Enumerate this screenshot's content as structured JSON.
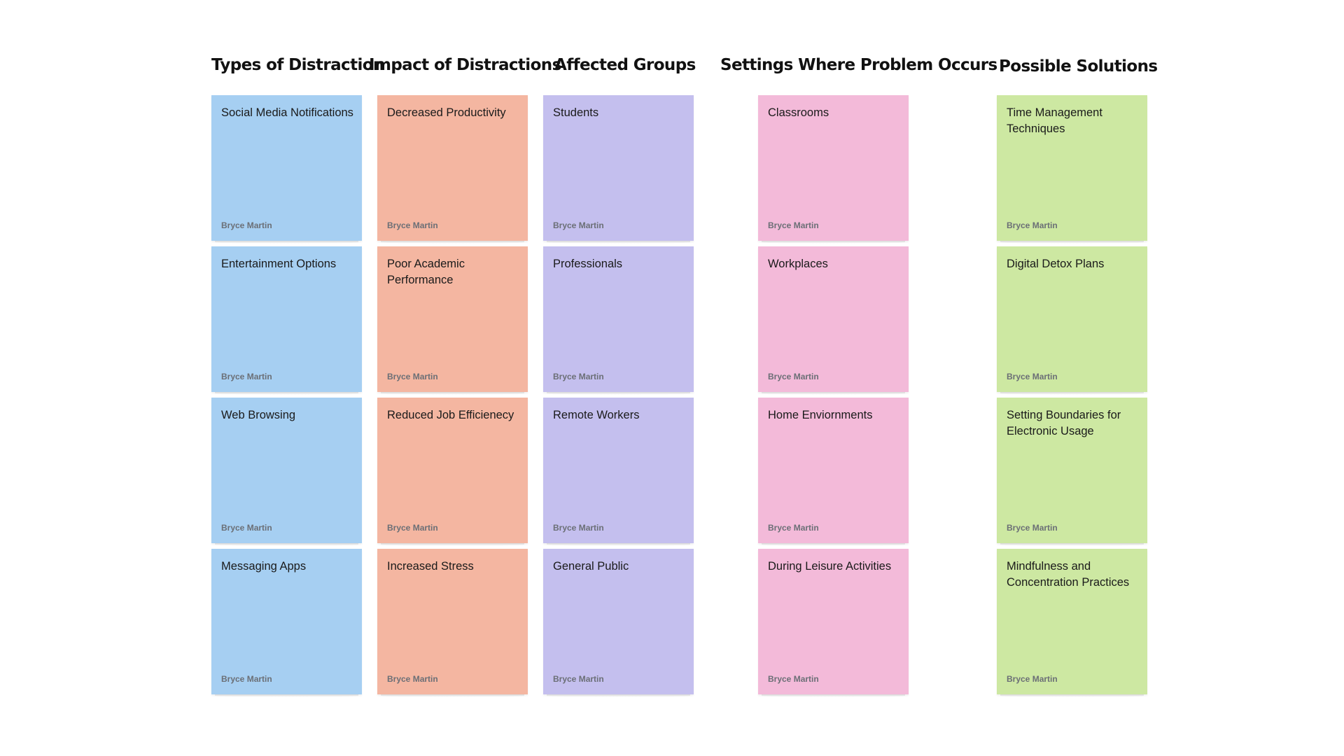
{
  "board": {
    "author": "Bryce Martin",
    "columns": [
      {
        "heading": "Types of Distraction",
        "color": "#a6cff2",
        "notes": [
          "Social Media Notifications",
          "Entertainment Options",
          "Web Browsing",
          "Messaging Apps"
        ]
      },
      {
        "heading": "Impact of Distractions",
        "color": "#f4b6a1",
        "notes": [
          "Decreased Productivity",
          "Poor Academic Performance",
          "Reduced Job Efficienecy",
          "Increased Stress"
        ]
      },
      {
        "heading": "Affected Groups",
        "color": "#c4bfee",
        "notes": [
          "Students",
          "Professionals",
          "Remote Workers",
          "General Public"
        ]
      },
      {
        "heading": "Settings Where Problem Occurs",
        "color": "#f3bad9",
        "notes": [
          "Classrooms",
          "Workplaces",
          "Home Enviornments",
          "During Leisure Activities"
        ]
      },
      {
        "heading": "Possible Solutions",
        "color": "#cde8a2",
        "notes": [
          "Time Management Techniques",
          "Digital Detox Plans",
          "Setting Boundaries for Electronic Usage",
          "Mindfulness and Concentration Practices"
        ]
      }
    ]
  }
}
